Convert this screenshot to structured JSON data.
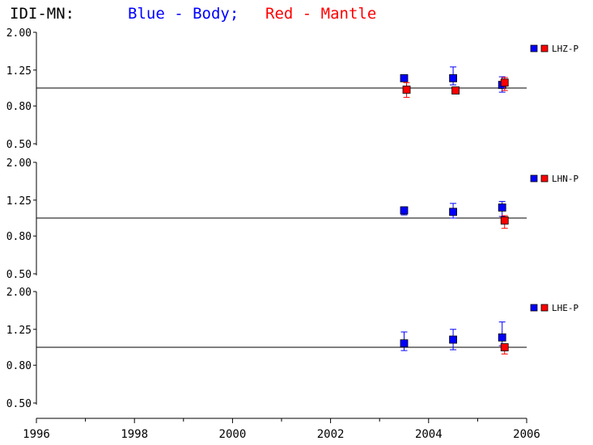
{
  "title": {
    "station": "IDI-MN:",
    "blue_label": "Blue - Body;",
    "red_label": "Red - Mantle"
  },
  "colors": {
    "body": "#0000ff",
    "mantle": "#ff0000",
    "text": "#000000",
    "axis": "#000000"
  },
  "chart_data": [
    {
      "type": "scatter",
      "legend": "LHZ-P",
      "y_scale": "log",
      "ylim": [
        0.5,
        2.0
      ],
      "y_ticks": [
        "2.00",
        "1.25",
        "0.80",
        "0.50"
      ],
      "reference_line": 1.0,
      "x_ticks": [
        "1996",
        "1998",
        "2000",
        "2002",
        "2004",
        "2006"
      ],
      "xlim": [
        1996,
        2006
      ],
      "series": [
        {
          "color": "blue",
          "points": [
            {
              "x": 2003.5,
              "y": 1.13,
              "err_low": 1.09,
              "err_high": 1.17
            },
            {
              "x": 2004.5,
              "y": 1.13,
              "err_low": 1.04,
              "err_high": 1.3
            },
            {
              "x": 2005.5,
              "y": 1.04,
              "err_low": 0.95,
              "err_high": 1.15
            }
          ]
        },
        {
          "color": "red",
          "points": [
            {
              "x": 2003.55,
              "y": 0.98,
              "err_low": 0.89,
              "err_high": 1.07
            },
            {
              "x": 2004.55,
              "y": 0.97,
              "err_low": 0.95,
              "err_high": 1.0
            },
            {
              "x": 2005.55,
              "y": 1.07,
              "err_low": 0.97,
              "err_high": 1.14
            }
          ]
        }
      ]
    },
    {
      "type": "scatter",
      "legend": "LHN-P",
      "y_scale": "log",
      "ylim": [
        0.5,
        2.0
      ],
      "y_ticks": [
        "2.00",
        "1.25",
        "0.80",
        "0.50"
      ],
      "reference_line": 1.0,
      "x_ticks": [
        "1996",
        "1998",
        "2000",
        "2002",
        "2004",
        "2006"
      ],
      "xlim": [
        1996,
        2006
      ],
      "series": [
        {
          "color": "blue",
          "points": [
            {
              "x": 2003.5,
              "y": 1.1,
              "err_low": 1.04,
              "err_high": 1.15
            },
            {
              "x": 2004.5,
              "y": 1.08,
              "err_low": 1.0,
              "err_high": 1.2
            },
            {
              "x": 2005.5,
              "y": 1.14,
              "err_low": 1.02,
              "err_high": 1.23
            }
          ]
        },
        {
          "color": "red",
          "points": [
            {
              "x": 2005.55,
              "y": 0.97,
              "err_low": 0.88,
              "err_high": 1.03
            }
          ]
        }
      ]
    },
    {
      "type": "scatter",
      "legend": "LHE-P",
      "y_scale": "log",
      "ylim": [
        0.5,
        2.0
      ],
      "y_ticks": [
        "2.00",
        "1.25",
        "0.80",
        "0.50"
      ],
      "reference_line": 1.0,
      "x_ticks": [
        "1996",
        "1998",
        "2000",
        "2002",
        "2004",
        "2006"
      ],
      "xlim": [
        1996,
        2006
      ],
      "series": [
        {
          "color": "blue",
          "points": [
            {
              "x": 2003.5,
              "y": 1.05,
              "err_low": 0.96,
              "err_high": 1.21
            },
            {
              "x": 2004.5,
              "y": 1.1,
              "err_low": 0.97,
              "err_high": 1.25
            },
            {
              "x": 2005.5,
              "y": 1.13,
              "err_low": 1.02,
              "err_high": 1.37
            }
          ]
        },
        {
          "color": "red",
          "points": [
            {
              "x": 2005.55,
              "y": 1.0,
              "err_low": 0.92,
              "err_high": 1.03
            }
          ]
        }
      ]
    }
  ]
}
